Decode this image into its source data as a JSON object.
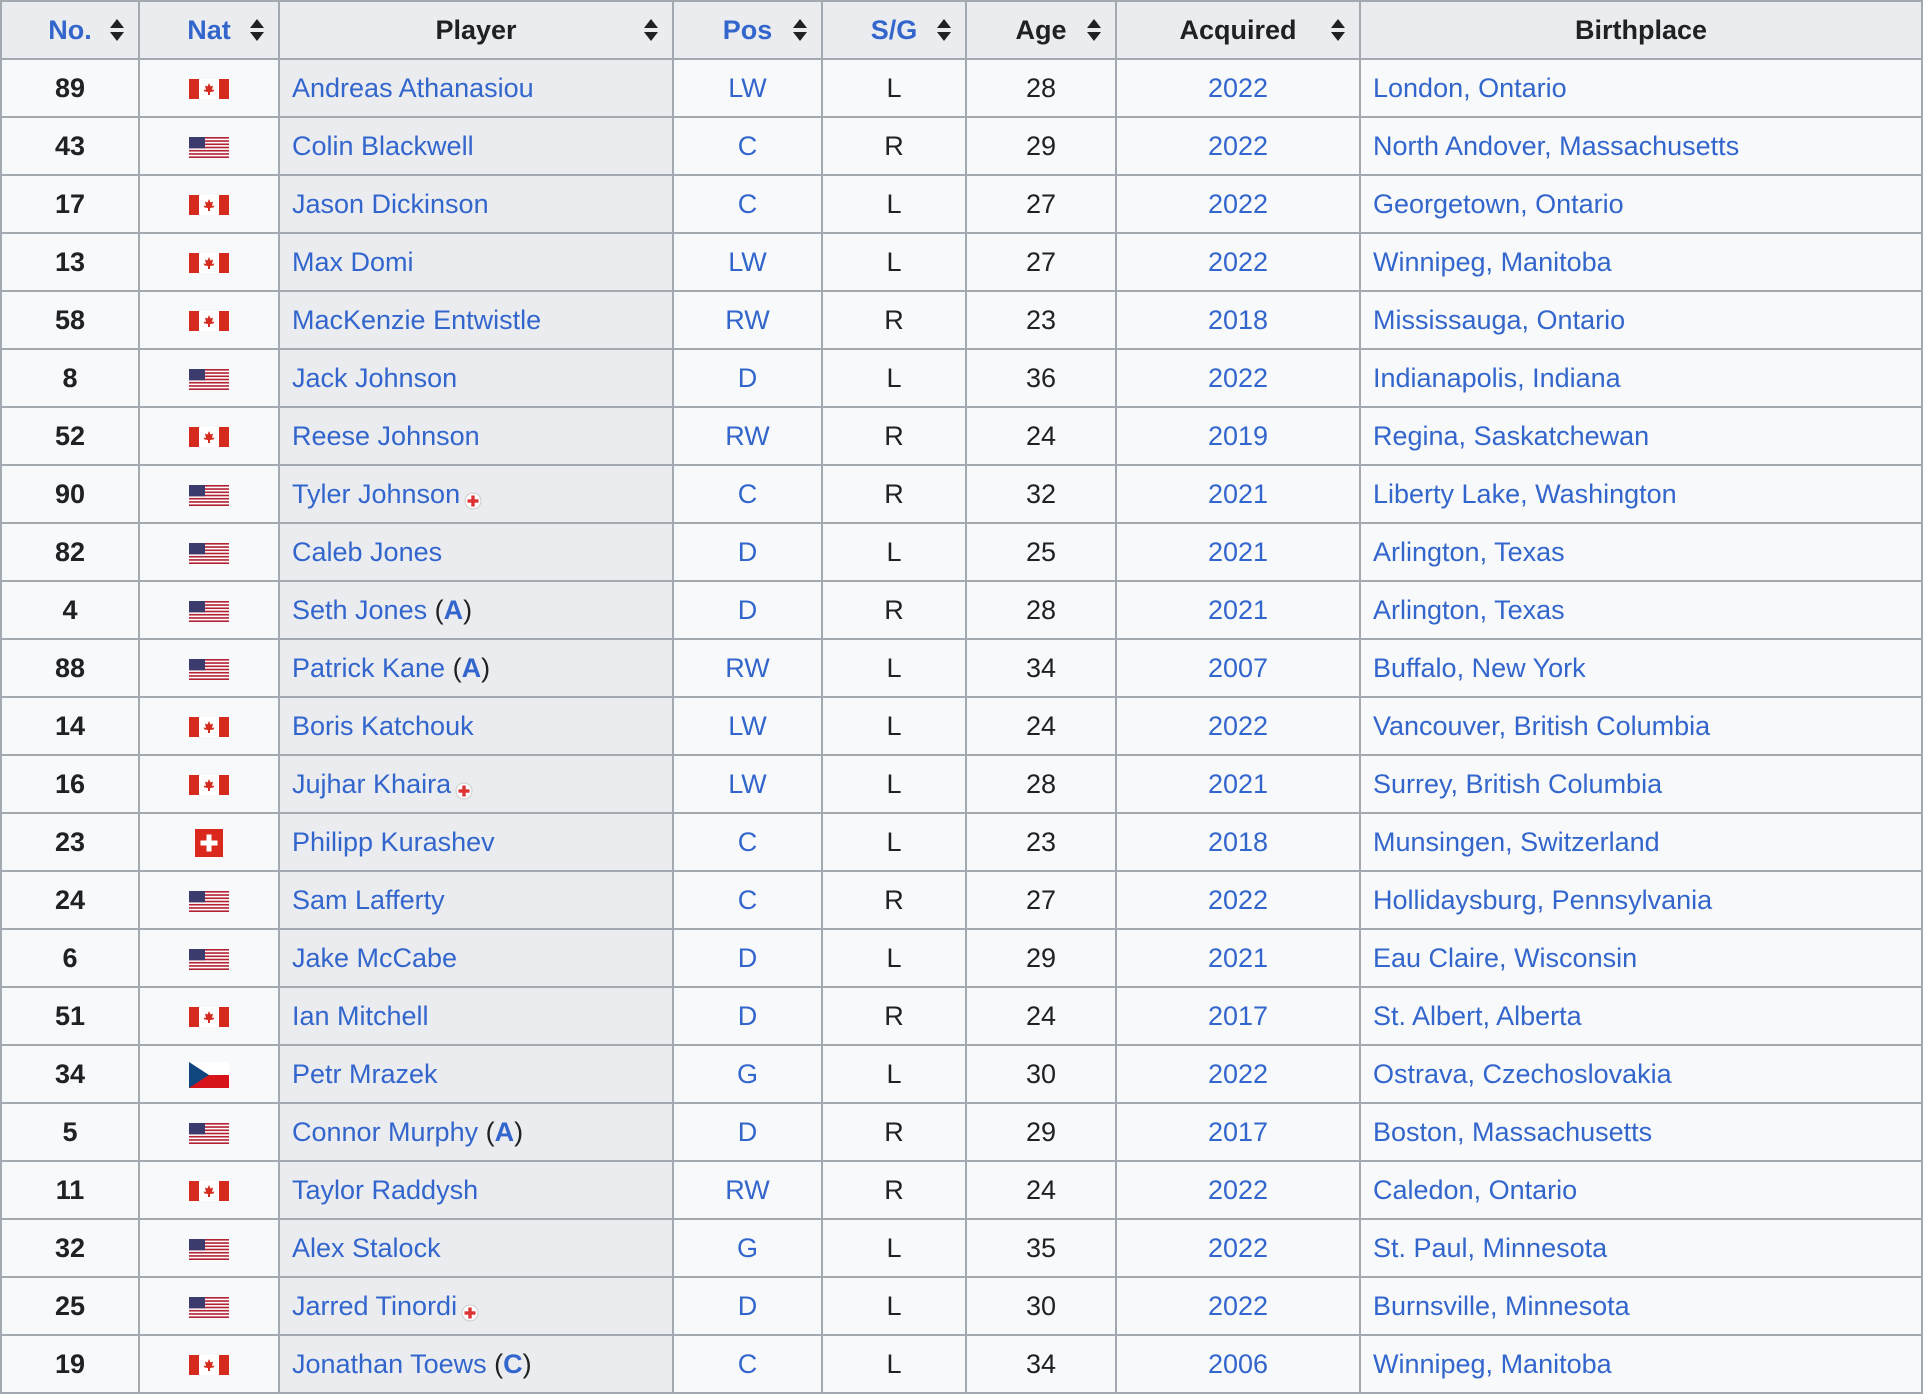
{
  "colors": {
    "link": "#3366cc",
    "header_bg": "#eaecf0",
    "cell_bg": "#f8f9fa",
    "border": "#a2a9b1",
    "text": "#202122",
    "injury": "#d33"
  },
  "headers": {
    "no": "No.",
    "nat": "Nat",
    "player": "Player",
    "pos": "Pos",
    "sg": "S/G",
    "age": "Age",
    "acquired": "Acquired",
    "birthplace": "Birthplace"
  },
  "rows": [
    {
      "no": "89",
      "flag": "canada-flag",
      "player": "Andreas Athanasiou",
      "badge": "",
      "injured": false,
      "pos": "LW",
      "sg": "L",
      "age": "28",
      "acquired": "2022",
      "birthplace": "London, Ontario"
    },
    {
      "no": "43",
      "flag": "usa-flag",
      "player": "Colin Blackwell",
      "badge": "",
      "injured": false,
      "pos": "C",
      "sg": "R",
      "age": "29",
      "acquired": "2022",
      "birthplace": "North Andover, Massachusetts"
    },
    {
      "no": "17",
      "flag": "canada-flag",
      "player": "Jason Dickinson",
      "badge": "",
      "injured": false,
      "pos": "C",
      "sg": "L",
      "age": "27",
      "acquired": "2022",
      "birthplace": "Georgetown, Ontario"
    },
    {
      "no": "13",
      "flag": "canada-flag",
      "player": "Max Domi",
      "badge": "",
      "injured": false,
      "pos": "LW",
      "sg": "L",
      "age": "27",
      "acquired": "2022",
      "birthplace": "Winnipeg, Manitoba"
    },
    {
      "no": "58",
      "flag": "canada-flag",
      "player": "MacKenzie Entwistle",
      "badge": "",
      "injured": false,
      "pos": "RW",
      "sg": "R",
      "age": "23",
      "acquired": "2018",
      "birthplace": "Mississauga, Ontario"
    },
    {
      "no": "8",
      "flag": "usa-flag",
      "player": "Jack Johnson",
      "badge": "",
      "injured": false,
      "pos": "D",
      "sg": "L",
      "age": "36",
      "acquired": "2022",
      "birthplace": "Indianapolis, Indiana"
    },
    {
      "no": "52",
      "flag": "canada-flag",
      "player": "Reese Johnson",
      "badge": "",
      "injured": false,
      "pos": "RW",
      "sg": "R",
      "age": "24",
      "acquired": "2019",
      "birthplace": "Regina, Saskatchewan"
    },
    {
      "no": "90",
      "flag": "usa-flag",
      "player": "Tyler Johnson",
      "badge": "",
      "injured": true,
      "pos": "C",
      "sg": "R",
      "age": "32",
      "acquired": "2021",
      "birthplace": "Liberty Lake, Washington"
    },
    {
      "no": "82",
      "flag": "usa-flag",
      "player": "Caleb Jones",
      "badge": "",
      "injured": false,
      "pos": "D",
      "sg": "L",
      "age": "25",
      "acquired": "2021",
      "birthplace": "Arlington, Texas"
    },
    {
      "no": "4",
      "flag": "usa-flag",
      "player": "Seth Jones",
      "badge": "A",
      "injured": false,
      "pos": "D",
      "sg": "R",
      "age": "28",
      "acquired": "2021",
      "birthplace": "Arlington, Texas"
    },
    {
      "no": "88",
      "flag": "usa-flag",
      "player": "Patrick Kane",
      "badge": "A",
      "injured": false,
      "pos": "RW",
      "sg": "L",
      "age": "34",
      "acquired": "2007",
      "birthplace": "Buffalo, New York"
    },
    {
      "no": "14",
      "flag": "canada-flag",
      "player": "Boris Katchouk",
      "badge": "",
      "injured": false,
      "pos": "LW",
      "sg": "L",
      "age": "24",
      "acquired": "2022",
      "birthplace": "Vancouver, British Columbia"
    },
    {
      "no": "16",
      "flag": "canada-flag",
      "player": "Jujhar Khaira",
      "badge": "",
      "injured": true,
      "pos": "LW",
      "sg": "L",
      "age": "28",
      "acquired": "2021",
      "birthplace": "Surrey, British Columbia"
    },
    {
      "no": "23",
      "flag": "switzerland-flag",
      "player": "Philipp Kurashev",
      "badge": "",
      "injured": false,
      "pos": "C",
      "sg": "L",
      "age": "23",
      "acquired": "2018",
      "birthplace": "Munsingen, Switzerland"
    },
    {
      "no": "24",
      "flag": "usa-flag",
      "player": "Sam Lafferty",
      "badge": "",
      "injured": false,
      "pos": "C",
      "sg": "R",
      "age": "27",
      "acquired": "2022",
      "birthplace": "Hollidaysburg, Pennsylvania"
    },
    {
      "no": "6",
      "flag": "usa-flag",
      "player": "Jake McCabe",
      "badge": "",
      "injured": false,
      "pos": "D",
      "sg": "L",
      "age": "29",
      "acquired": "2021",
      "birthplace": "Eau Claire, Wisconsin"
    },
    {
      "no": "51",
      "flag": "canada-flag",
      "player": "Ian Mitchell",
      "badge": "",
      "injured": false,
      "pos": "D",
      "sg": "R",
      "age": "24",
      "acquired": "2017",
      "birthplace": "St. Albert, Alberta"
    },
    {
      "no": "34",
      "flag": "czech-flag",
      "player": "Petr Mrazek",
      "badge": "",
      "injured": false,
      "pos": "G",
      "sg": "L",
      "age": "30",
      "acquired": "2022",
      "birthplace": "Ostrava, Czechoslovakia"
    },
    {
      "no": "5",
      "flag": "usa-flag",
      "player": "Connor Murphy",
      "badge": "A",
      "injured": false,
      "pos": "D",
      "sg": "R",
      "age": "29",
      "acquired": "2017",
      "birthplace": "Boston, Massachusetts"
    },
    {
      "no": "11",
      "flag": "canada-flag",
      "player": "Taylor Raddysh",
      "badge": "",
      "injured": false,
      "pos": "RW",
      "sg": "R",
      "age": "24",
      "acquired": "2022",
      "birthplace": "Caledon, Ontario"
    },
    {
      "no": "32",
      "flag": "usa-flag",
      "player": "Alex Stalock",
      "badge": "",
      "injured": false,
      "pos": "G",
      "sg": "L",
      "age": "35",
      "acquired": "2022",
      "birthplace": "St. Paul, Minnesota"
    },
    {
      "no": "25",
      "flag": "usa-flag",
      "player": "Jarred Tinordi",
      "badge": "",
      "injured": true,
      "pos": "D",
      "sg": "L",
      "age": "30",
      "acquired": "2022",
      "birthplace": "Burnsville, Minnesota"
    },
    {
      "no": "19",
      "flag": "canada-flag",
      "player": "Jonathan Toews",
      "badge": "C",
      "injured": false,
      "pos": "C",
      "sg": "L",
      "age": "34",
      "acquired": "2006",
      "birthplace": "Winnipeg, Manitoba"
    }
  ]
}
